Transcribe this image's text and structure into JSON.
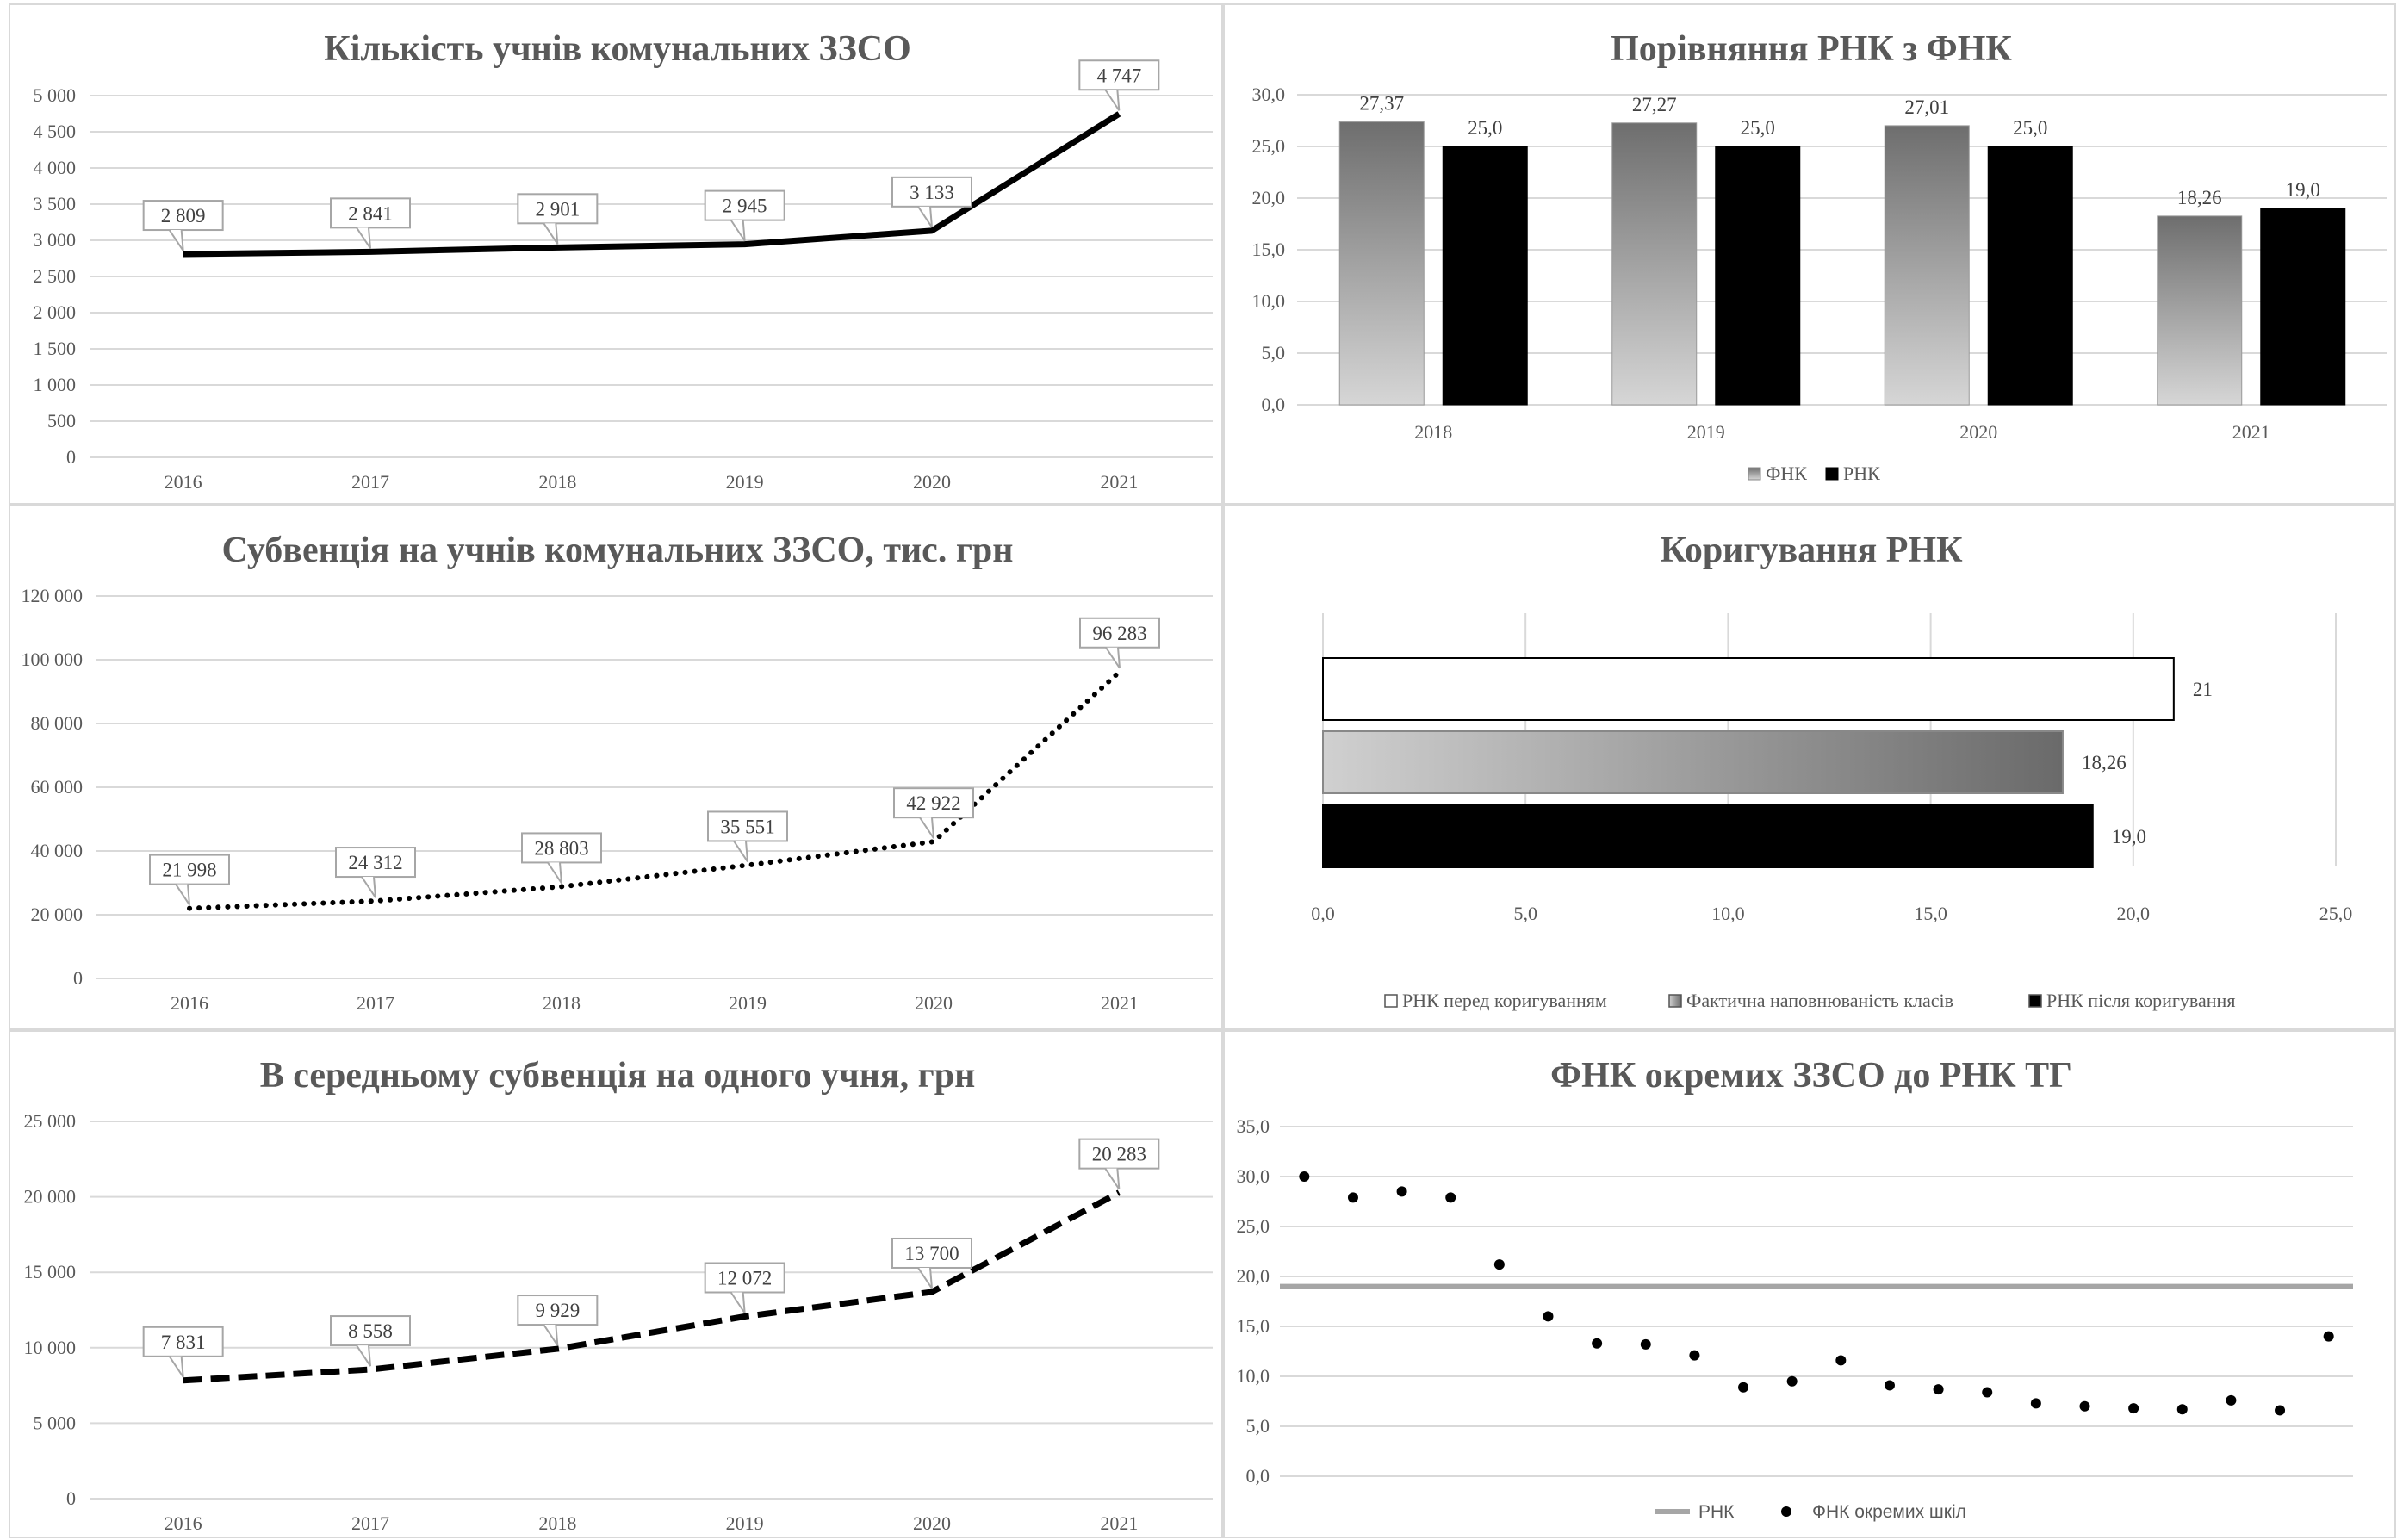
{
  "chart_data": [
    {
      "id": "students",
      "type": "line",
      "title": "Кількість учнів комунальних ЗЗСО",
      "categories": [
        "2016",
        "2017",
        "2018",
        "2019",
        "2020",
        "2021"
      ],
      "series": [
        {
          "values": [
            2809,
            2841,
            2901,
            2945,
            3133,
            4747
          ],
          "line_style": "solid"
        }
      ],
      "data_labels": [
        "2 809",
        "2 841",
        "2 901",
        "2 945",
        "3 133",
        "4 747"
      ],
      "ylim": [
        0,
        5000
      ],
      "yticks": [
        "0",
        "500",
        "1 000",
        "1 500",
        "2 000",
        "2 500",
        "3 000",
        "3 500",
        "4 000",
        "4 500",
        "5 000"
      ],
      "grid": true
    },
    {
      "id": "ratio",
      "type": "bar",
      "title": "Порівняння РНК з ФНК",
      "categories": [
        "2018",
        "2019",
        "2020",
        "2021"
      ],
      "series": [
        {
          "name": "ФНК",
          "values": [
            27.37,
            27.27,
            27.01,
            18.26
          ],
          "labels": [
            "27,37",
            "27,27",
            "27,01",
            "18,26"
          ],
          "color": "gradient-gray"
        },
        {
          "name": "РНК",
          "values": [
            25.0,
            25.0,
            25.0,
            19.0
          ],
          "labels": [
            "25,0",
            "25,0",
            "25,0",
            "19,0"
          ],
          "color": "#000000"
        }
      ],
      "ylim": [
        0,
        30
      ],
      "yticks": [
        "0,0",
        "5,0",
        "10,0",
        "15,0",
        "20,0",
        "25,0",
        "30,0"
      ],
      "legend": "bottom",
      "grid": true
    },
    {
      "id": "subvention",
      "type": "line",
      "title": "Субвенція на учнів комунальних ЗЗСО, тис. грн",
      "categories": [
        "2016",
        "2017",
        "2018",
        "2019",
        "2020",
        "2021"
      ],
      "series": [
        {
          "values": [
            21998,
            24312,
            28803,
            35551,
            42922,
            96283
          ],
          "line_style": "dotted"
        }
      ],
      "data_labels": [
        "21 998",
        "24 312",
        "28 803",
        "35 551",
        "42 922",
        "96 283"
      ],
      "ylim": [
        0,
        120000
      ],
      "yticks": [
        "0",
        "20 000",
        "40 000",
        "60 000",
        "80 000",
        "100 000",
        "120 000"
      ],
      "grid": true
    },
    {
      "id": "correction",
      "type": "bar",
      "orientation": "horizontal",
      "title": "Коригування РНК",
      "series": [
        {
          "name": "РНК перед коригуванням",
          "values": [
            21
          ],
          "labels": [
            "21"
          ],
          "color": "#ffffff"
        },
        {
          "name": "Фактична наповнюваність класів",
          "values": [
            18.26
          ],
          "labels": [
            "18,26"
          ],
          "color": "gradient-gray"
        },
        {
          "name": "РНК після коригування",
          "values": [
            19.0
          ],
          "labels": [
            "19,0"
          ],
          "color": "#000000"
        }
      ],
      "xlim": [
        0,
        25
      ],
      "xticks": [
        "0,0",
        "5,0",
        "10,0",
        "15,0",
        "20,0",
        "25,0"
      ],
      "legend": "bottom",
      "grid": true
    },
    {
      "id": "per_student",
      "type": "line",
      "title": "В середньому субвенція на одного учня, грн",
      "categories": [
        "2016",
        "2017",
        "2018",
        "2019",
        "2020",
        "2021"
      ],
      "series": [
        {
          "values": [
            7831,
            8558,
            9929,
            12072,
            13700,
            20283
          ],
          "line_style": "dashed"
        }
      ],
      "data_labels": [
        "7 831",
        "8 558",
        "9 929",
        "12 072",
        "13 700",
        "20 283"
      ],
      "ylim": [
        0,
        25000
      ],
      "yticks": [
        "0",
        "5 000",
        "10 000",
        "15 000",
        "20 000",
        "25 000"
      ],
      "grid": true
    },
    {
      "id": "schools",
      "type": "scatter",
      "title": "ФНК окремих ЗЗСО до РНК ТГ",
      "series": [
        {
          "name": "РНК",
          "kind": "line",
          "values": [
            19.0
          ],
          "color": "#a6a6a6"
        },
        {
          "name": "ФНК окремих шкіл",
          "kind": "points",
          "values": [
            30.0,
            27.9,
            28.5,
            27.9,
            21.2,
            16.0,
            13.3,
            13.2,
            12.1,
            8.9,
            9.5,
            11.6,
            9.1,
            8.7,
            8.4,
            7.3,
            7.0,
            6.8,
            6.7,
            7.6,
            6.6,
            14.0
          ]
        }
      ],
      "ylim": [
        0,
        35
      ],
      "yticks": [
        "0,0",
        "5,0",
        "10,0",
        "15,0",
        "20,0",
        "25,0",
        "30,0",
        "35,0"
      ],
      "legend": "bottom",
      "grid": true
    }
  ]
}
